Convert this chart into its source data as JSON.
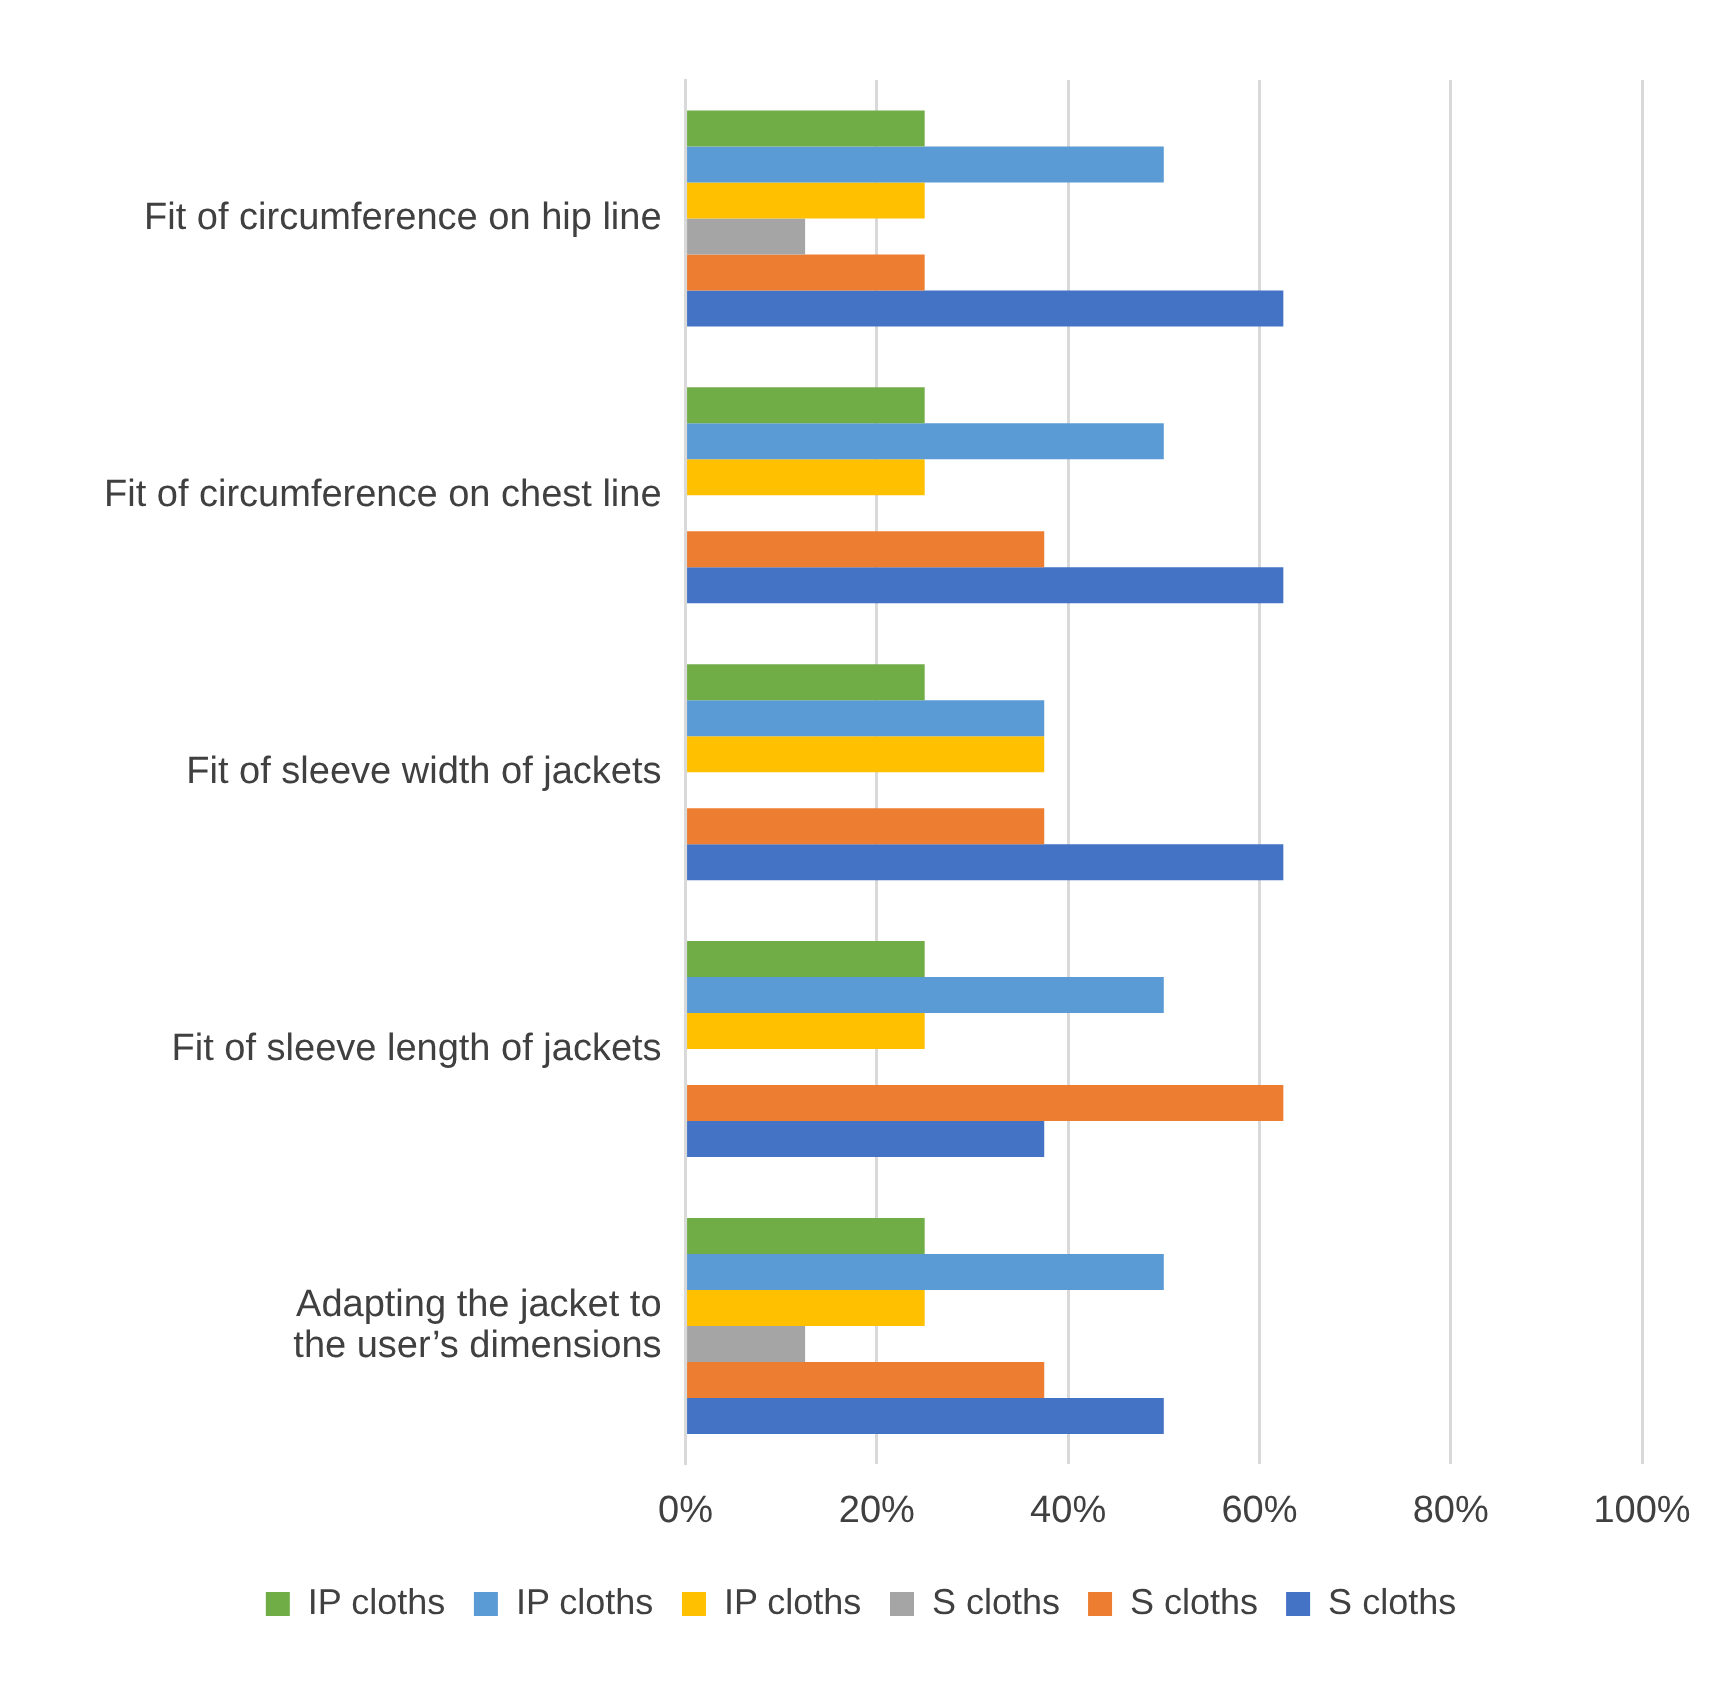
{
  "chart_data": {
    "type": "bar",
    "orientation": "horizontal",
    "categories": [
      "Fit of circumference on hip line",
      "Fit of circumference on chest line",
      "Fit of sleeve width of jackets",
      "Fit of sleeve length of jackets",
      "Adapting the jacket to the user’s dimensions"
    ],
    "series": [
      {
        "name": "IP cloths",
        "color": "#70ad47",
        "values": [
          25,
          25,
          25,
          25,
          25
        ]
      },
      {
        "name": "IP cloths",
        "color": "#5b9bd5",
        "values": [
          50,
          50,
          37.5,
          50,
          50
        ]
      },
      {
        "name": "IP cloths",
        "color": "#ffc000",
        "values": [
          25,
          25,
          37.5,
          25,
          25
        ]
      },
      {
        "name": "S cloths",
        "color": "#a5a5a5",
        "values": [
          12.5,
          null,
          null,
          null,
          12.5
        ]
      },
      {
        "name": "S cloths",
        "color": "#ed7d31",
        "values": [
          25,
          37.5,
          37.5,
          62.5,
          37.5
        ]
      },
      {
        "name": "S cloths",
        "color": "#4472c4",
        "values": [
          62.5,
          62.5,
          62.5,
          37.5,
          50
        ]
      }
    ],
    "xlim": [
      0,
      100
    ],
    "xticks": [
      {
        "value": 0,
        "label": "0%"
      },
      {
        "value": 20,
        "label": "20%"
      },
      {
        "value": 40,
        "label": "40%"
      },
      {
        "value": 60,
        "label": "60%"
      },
      {
        "value": 80,
        "label": "80%"
      },
      {
        "value": 100,
        "label": "100%"
      }
    ],
    "grid": "x",
    "legend": "bottom"
  }
}
